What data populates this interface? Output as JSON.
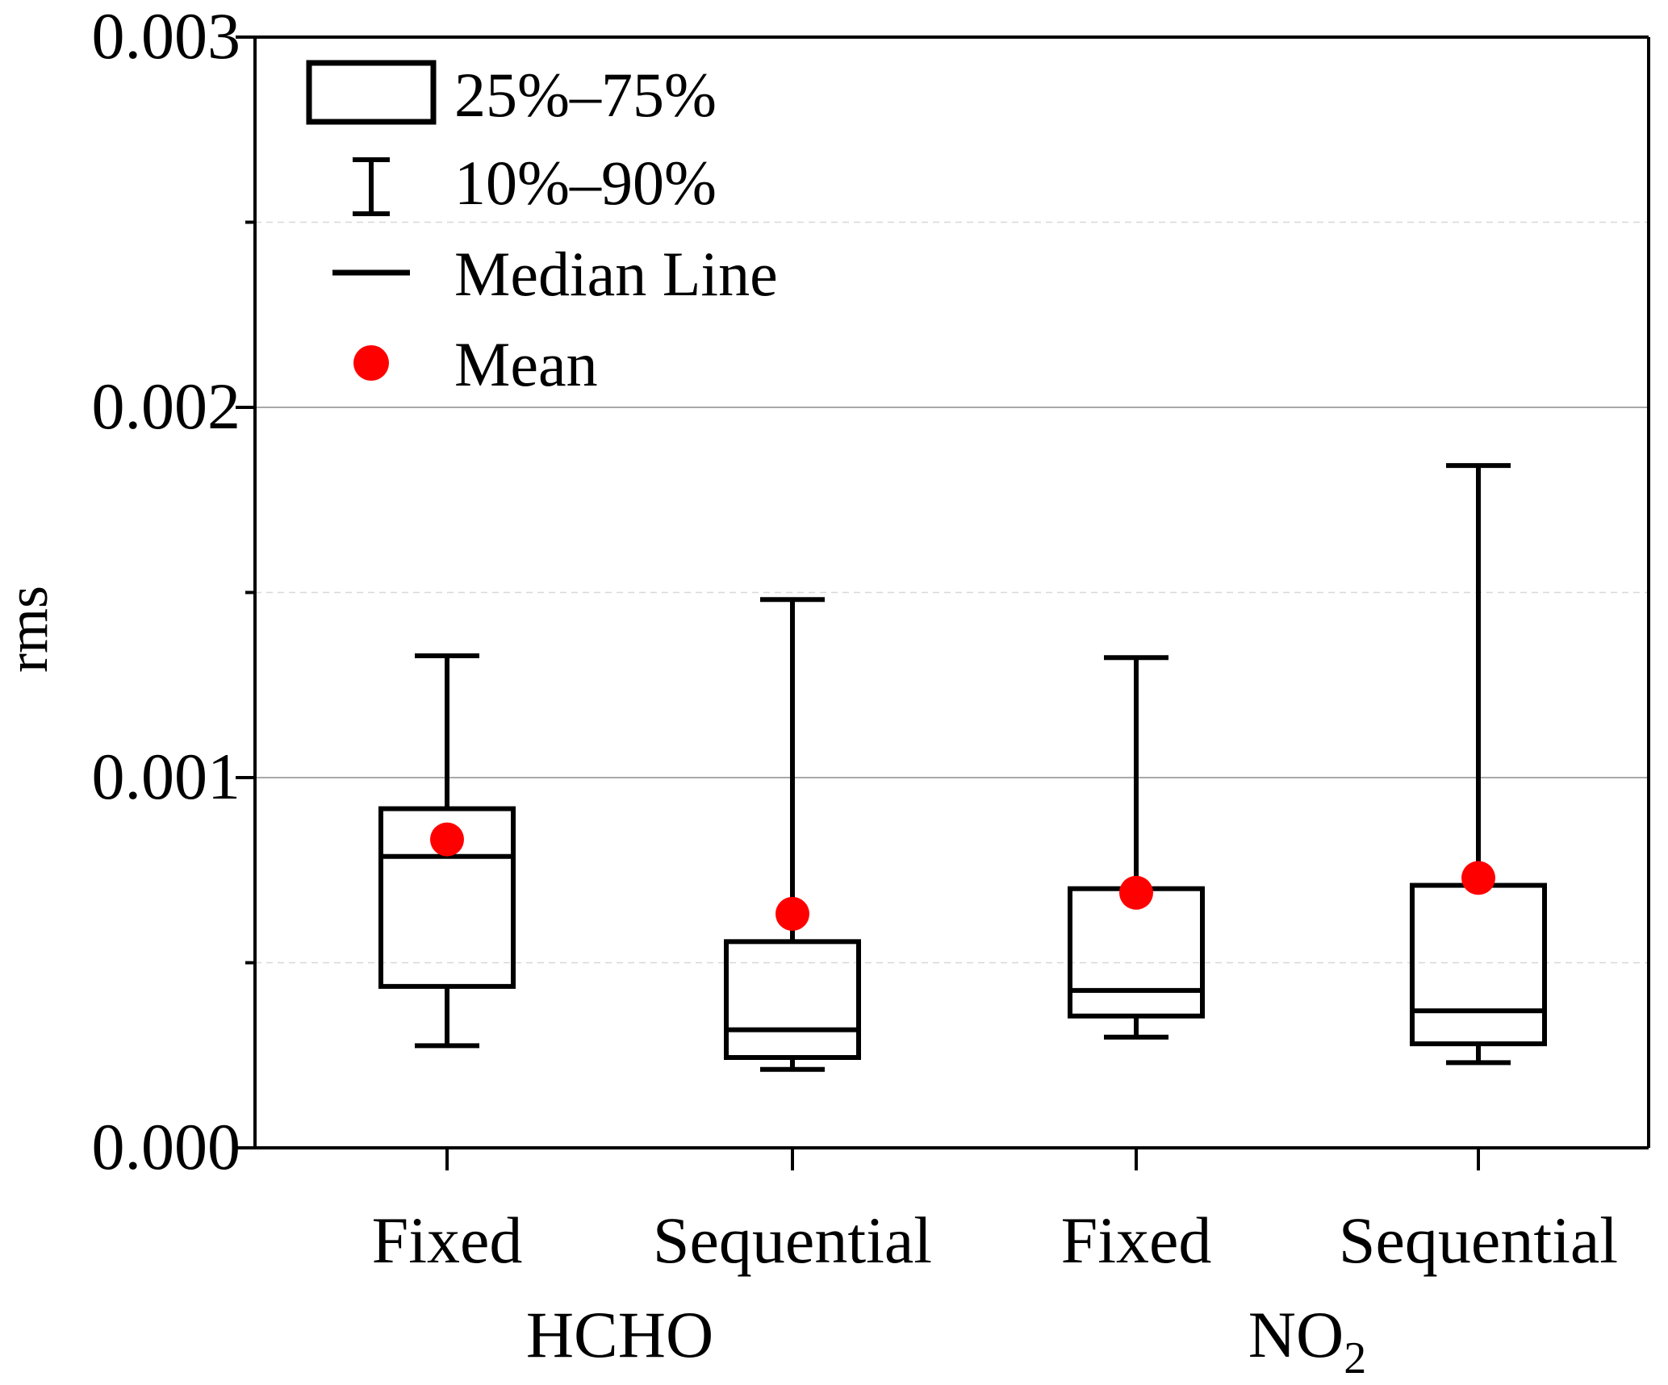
{
  "chart_data": {
    "type": "box",
    "title": "",
    "xlabel": "",
    "ylabel": "rms",
    "ylim": [
      0,
      0.003
    ],
    "yticks": [
      "0.000",
      "0.001",
      "0.002",
      "0.003"
    ],
    "grid": "horizontal (solid at major ticks, dashed at minor)",
    "categories": [
      "Fixed",
      "Sequential",
      "Fixed",
      "Sequential"
    ],
    "groups": [
      {
        "label": "HCHO",
        "sub": ""
      },
      {
        "label": "NO",
        "sub": "2"
      }
    ],
    "series": [
      {
        "name": "HCHO Fixed",
        "p10": 0.000276,
        "q1": 0.000436,
        "median": 0.000787,
        "q3": 0.000916,
        "p90": 0.001329,
        "mean": 0.000833
      },
      {
        "name": "HCHO Sequential",
        "p10": 0.000212,
        "q1": 0.000244,
        "median": 0.000319,
        "q3": 0.000557,
        "p90": 0.001481,
        "mean": 0.000632
      },
      {
        "name": "NO2 Fixed",
        "p10": 0.000299,
        "q1": 0.000356,
        "median": 0.000425,
        "q3": 0.0007,
        "p90": 0.001324,
        "mean": 0.000689
      },
      {
        "name": "NO2 Sequential",
        "p10": 0.00023,
        "q1": 0.000281,
        "median": 0.00037,
        "q3": 0.000709,
        "p90": 0.001843,
        "mean": 0.000729
      }
    ],
    "legend": {
      "placement": "top-left",
      "entries": [
        "25%–75%",
        "10%–90%",
        "Median Line",
        "Mean"
      ]
    },
    "colors": {
      "box": "#000000",
      "mean": "#ff0000",
      "grid": "#b0b0b0"
    }
  }
}
